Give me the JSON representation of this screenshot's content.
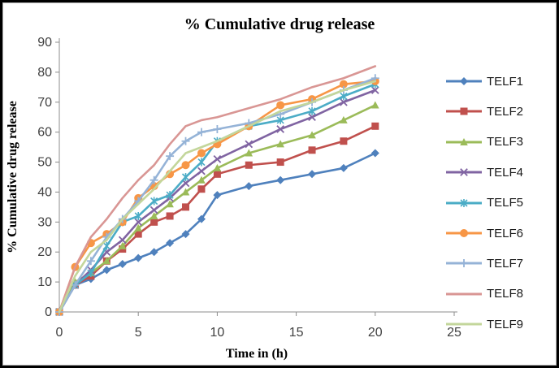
{
  "chart_data": {
    "type": "line",
    "title": "% Cumulative drug release",
    "xlabel": "Time in (h)",
    "ylabel": "% Cumulative drug release",
    "xlim": [
      0,
      25
    ],
    "ylim": [
      0,
      90
    ],
    "x_ticks": [
      0,
      5,
      10,
      15,
      20,
      25
    ],
    "y_ticks": [
      0,
      10,
      20,
      30,
      40,
      50,
      60,
      70,
      80,
      90
    ],
    "grid": false,
    "legend_position": "right",
    "axis_color": "#8c8c8c",
    "tick_label_color": "#404040",
    "x": [
      0,
      1,
      2,
      3,
      4,
      5,
      6,
      7,
      8,
      9,
      10,
      12,
      14,
      16,
      18,
      20
    ],
    "series": [
      {
        "name": "TELF1",
        "color": "#4F81BD",
        "marker": "diamond",
        "values": [
          0,
          9,
          11,
          14,
          16,
          18,
          20,
          23,
          26,
          31,
          39,
          42,
          44,
          46,
          48,
          53
        ]
      },
      {
        "name": "TELF2",
        "color": "#C0504D",
        "marker": "square",
        "values": [
          0,
          9,
          12,
          17,
          21,
          26,
          30,
          32,
          35,
          41,
          46,
          49,
          50,
          54,
          57,
          62
        ]
      },
      {
        "name": "TELF3",
        "color": "#9BBB59",
        "marker": "triangle",
        "values": [
          0,
          10,
          13,
          17,
          22,
          28,
          32,
          36,
          40,
          44,
          48,
          53,
          56,
          59,
          64,
          69
        ]
      },
      {
        "name": "TELF4",
        "color": "#8064A2",
        "marker": "x",
        "values": [
          0,
          9,
          14,
          20,
          24,
          30,
          34,
          38,
          43,
          47,
          51,
          56,
          61,
          65,
          70,
          74
        ]
      },
      {
        "name": "TELF5",
        "color": "#4BACC6",
        "marker": "asterisk",
        "values": [
          0,
          9,
          13,
          22,
          30,
          32,
          37,
          39,
          45,
          50,
          57,
          62,
          64,
          67,
          72,
          76
        ]
      },
      {
        "name": "TELF6",
        "color": "#F79646",
        "marker": "circle",
        "values": [
          0,
          15,
          23,
          26,
          30,
          38,
          42,
          46,
          49,
          53,
          56,
          62,
          69,
          71,
          76,
          77
        ]
      },
      {
        "name": "TELF7",
        "color": "#95B3D7",
        "marker": "plus",
        "values": [
          0,
          9,
          17,
          25,
          31,
          37,
          44,
          52,
          57,
          60,
          61,
          63,
          66,
          70,
          74,
          78
        ]
      },
      {
        "name": "TELF8",
        "color": "#D99694",
        "marker": "none",
        "values": [
          0,
          15,
          25,
          31,
          38,
          44,
          49,
          56,
          62,
          64,
          65,
          68,
          71,
          75,
          78,
          82
        ]
      },
      {
        "name": "TELF9",
        "color": "#C3D69B",
        "marker": "none",
        "values": [
          0,
          12,
          20,
          24,
          31,
          36,
          41,
          47,
          53,
          55,
          57,
          62,
          67,
          70,
          74,
          77
        ]
      }
    ]
  }
}
